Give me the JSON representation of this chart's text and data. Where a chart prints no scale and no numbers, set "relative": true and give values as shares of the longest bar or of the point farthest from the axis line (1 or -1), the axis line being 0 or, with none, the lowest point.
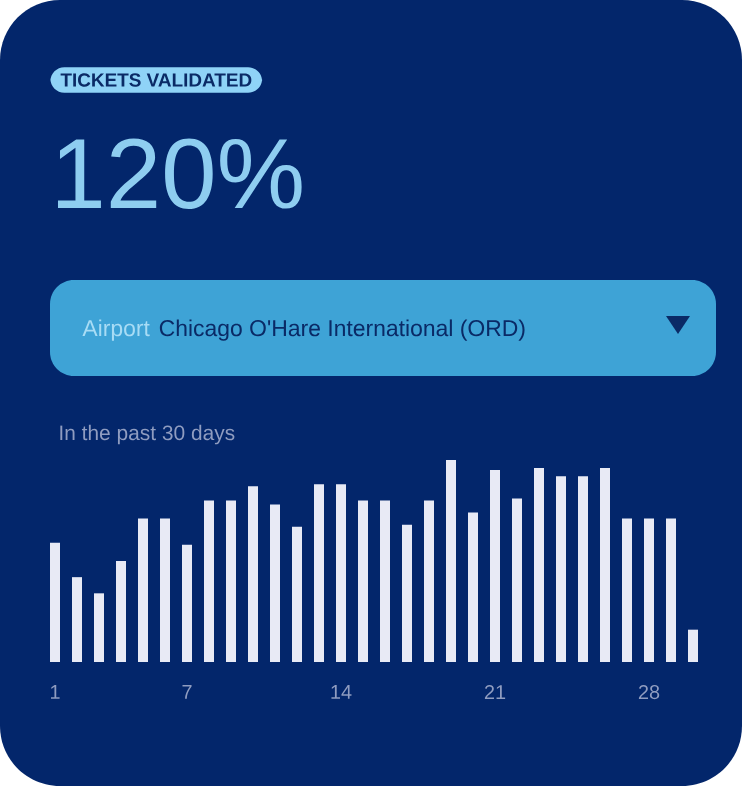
{
  "chart_data": {
    "type": "bar",
    "title": "TICKETS VALIDATED",
    "subtitle": "In the past 30 days",
    "annotations": [
      "120%",
      "Airport",
      "Chicago O'Hare International (ORD)"
    ],
    "categories": [
      "1",
      null,
      null,
      null,
      null,
      null,
      "7",
      null,
      null,
      null,
      null,
      null,
      null,
      "14",
      null,
      null,
      null,
      null,
      null,
      null,
      "21",
      null,
      null,
      null,
      null,
      null,
      null,
      "28",
      null,
      null
    ],
    "values": [
      0.59,
      0.42,
      0.34,
      0.5,
      0.71,
      0.71,
      0.58,
      0.8,
      0.8,
      0.87,
      0.78,
      0.67,
      0.88,
      0.88,
      0.8,
      0.8,
      0.68,
      0.8,
      1,
      0.74,
      0.95,
      0.81,
      0.96,
      0.92,
      0.92,
      0.96,
      0.71,
      0.71,
      0.71,
      0.16
    ],
    "color": "#e8eaf5",
    "relative": true
  }
}
